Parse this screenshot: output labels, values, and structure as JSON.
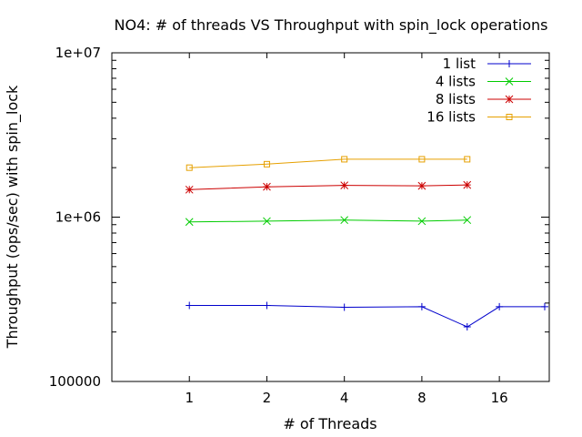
{
  "chart_data": {
    "type": "line",
    "title": "NO4: # of threads VS Throughput with spin_lock operations",
    "xlabel": "# of Threads",
    "ylabel": "Throughput (ops/sec) with spin_lock",
    "x_scale": "log2",
    "y_scale": "log10",
    "xlim": [
      0.5,
      25
    ],
    "ylim": [
      100000,
      10000000
    ],
    "x_ticks": [
      1,
      2,
      4,
      8,
      16
    ],
    "x_tick_labels": [
      "1",
      "2",
      "4",
      "8",
      "16"
    ],
    "y_ticks": [
      100000,
      1000000,
      10000000
    ],
    "y_tick_labels": [
      "100000",
      "1e+06",
      "1e+07"
    ],
    "legend_position": "top-right",
    "series": [
      {
        "name": "1 list",
        "color": "#0000cc",
        "marker": "plus",
        "x": [
          1,
          2,
          4,
          8,
          12,
          16,
          24
        ],
        "y": [
          290000,
          290000,
          283000,
          285000,
          215000,
          285000,
          285000
        ]
      },
      {
        "name": "4 lists",
        "color": "#00cc00",
        "marker": "cross",
        "x": [
          1,
          2,
          4,
          8,
          12
        ],
        "y": [
          935000,
          945000,
          960000,
          945000,
          960000
        ]
      },
      {
        "name": "8 lists",
        "color": "#cc0000",
        "marker": "star",
        "x": [
          1,
          2,
          4,
          8,
          12
        ],
        "y": [
          1470000,
          1530000,
          1560000,
          1550000,
          1570000
        ]
      },
      {
        "name": "16 lists",
        "color": "#e6a000",
        "marker": "square",
        "x": [
          1,
          2,
          4,
          8,
          12
        ],
        "y": [
          2000000,
          2100000,
          2250000,
          2250000,
          2250000
        ]
      }
    ]
  }
}
